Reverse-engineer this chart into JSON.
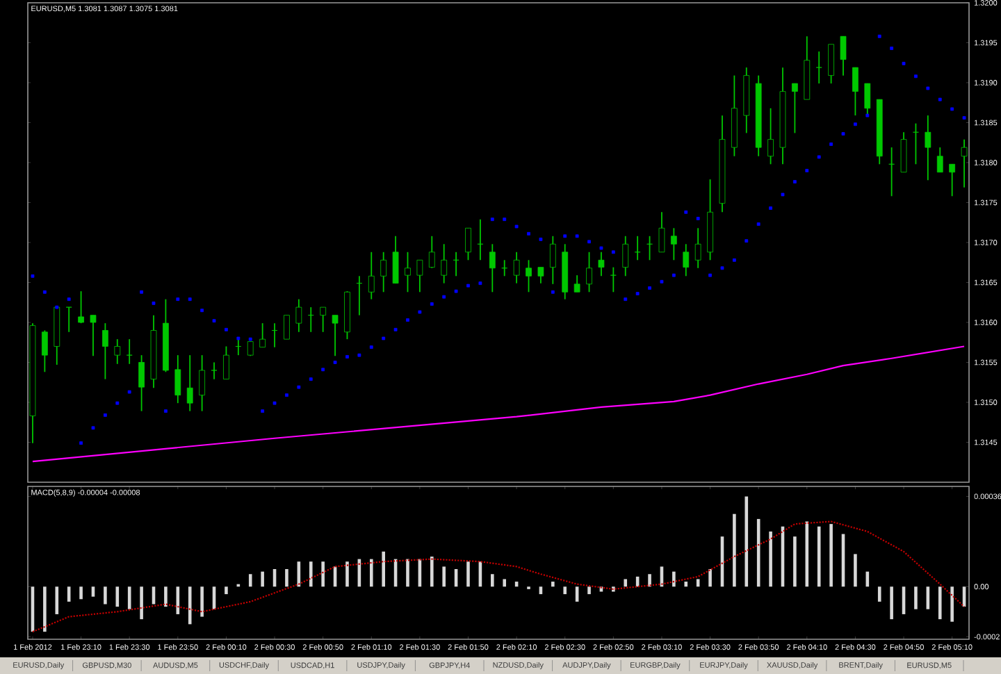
{
  "chart_data": [
    {
      "type": "candlestick",
      "title": "EURUSD,M5  1.3081 1.3087 1.3075 1.3081",
      "color": "#00c800",
      "x": [
        "2012-02-01T22:50",
        "2012-02-01T22:55",
        "2012-02-01T23:00",
        "2012-02-01T23:05",
        "2012-02-01T23:10",
        "2012-02-01T23:15",
        "2012-02-01T23:20",
        "2012-02-01T23:25",
        "2012-02-01T23:30",
        "2012-02-01T23:35",
        "2012-02-01T23:40",
        "2012-02-01T23:45",
        "2012-02-01T23:50",
        "2012-02-01T23:55",
        "2012-02-02T00:00",
        "2012-02-02T00:05",
        "2012-02-02T00:10",
        "2012-02-02T00:15",
        "2012-02-02T00:20",
        "2012-02-02T00:25",
        "2012-02-02T00:30",
        "2012-02-02T00:35",
        "2012-02-02T00:40",
        "2012-02-02T00:45",
        "2012-02-02T00:50",
        "2012-02-02T00:55",
        "2012-02-02T01:00",
        "2012-02-02T01:05",
        "2012-02-02T01:10",
        "2012-02-02T01:15",
        "2012-02-02T01:20",
        "2012-02-02T01:25",
        "2012-02-02T01:30",
        "2012-02-02T01:35",
        "2012-02-02T01:40",
        "2012-02-02T01:45",
        "2012-02-02T01:50",
        "2012-02-02T01:55",
        "2012-02-02T02:00",
        "2012-02-02T02:05",
        "2012-02-02T02:10",
        "2012-02-02T02:15",
        "2012-02-02T02:20",
        "2012-02-02T02:25",
        "2012-02-02T02:30",
        "2012-02-02T02:35",
        "2012-02-02T02:40",
        "2012-02-02T02:45",
        "2012-02-02T02:50",
        "2012-02-02T02:55",
        "2012-02-02T03:00",
        "2012-02-02T03:05",
        "2012-02-02T03:10",
        "2012-02-02T03:15",
        "2012-02-02T03:20",
        "2012-02-02T03:25",
        "2012-02-02T03:30",
        "2012-02-02T03:35",
        "2012-02-02T03:40",
        "2012-02-02T03:45",
        "2012-02-02T03:50",
        "2012-02-02T03:55",
        "2012-02-02T04:00",
        "2012-02-02T04:05",
        "2012-02-02T04:10",
        "2012-02-02T04:15",
        "2012-02-02T04:20",
        "2012-02-02T04:25",
        "2012-02-02T04:30",
        "2012-02-02T04:35",
        "2012-02-02T04:40",
        "2012-02-02T04:45",
        "2012-02-02T04:50",
        "2012-02-02T04:55",
        "2012-02-02T05:00",
        "2012-02-02T05:05",
        "2012-02-02T05:10",
        "2012-02-02T05:15"
      ],
      "ohlc": [
        [
          1.31483,
          1.31599,
          1.31449,
          1.31596
        ],
        [
          1.31588,
          1.3159,
          1.31538,
          1.31559
        ],
        [
          1.3157,
          1.31619,
          1.31547,
          1.31619
        ],
        [
          1.31619,
          1.31619,
          1.31588,
          1.31619
        ],
        [
          1.31607,
          1.31639,
          1.31599,
          1.316
        ],
        [
          1.31609,
          1.31609,
          1.31558,
          1.316
        ],
        [
          1.3159,
          1.31599,
          1.31529,
          1.3157
        ],
        [
          1.31559,
          1.31579,
          1.31548,
          1.3157
        ],
        [
          1.31559,
          1.31579,
          1.31548,
          1.31559
        ],
        [
          1.3155,
          1.31559,
          1.31489,
          1.31519
        ],
        [
          1.31529,
          1.31609,
          1.31518,
          1.3159
        ],
        [
          1.31599,
          1.31629,
          1.31538,
          1.3154
        ],
        [
          1.31541,
          1.31559,
          1.31499,
          1.31509
        ],
        [
          1.31518,
          1.31559,
          1.31489,
          1.31499
        ],
        [
          1.31509,
          1.31559,
          1.31489,
          1.3154
        ],
        [
          1.3154,
          1.3155,
          1.31529,
          1.3154
        ],
        [
          1.31529,
          1.3157,
          1.31529,
          1.31559
        ],
        [
          1.3157,
          1.31581,
          1.31559,
          1.3157
        ],
        [
          1.31559,
          1.31576,
          1.31558,
          1.31576
        ],
        [
          1.31569,
          1.31599,
          1.31569,
          1.31579
        ],
        [
          1.3159,
          1.31599,
          1.31569,
          1.3159
        ],
        [
          1.31579,
          1.31609,
          1.31579,
          1.31609
        ],
        [
          1.31599,
          1.31629,
          1.31588,
          1.31619
        ],
        [
          1.31609,
          1.31619,
          1.31588,
          1.31609
        ],
        [
          1.31609,
          1.31619,
          1.31588,
          1.31619
        ],
        [
          1.31609,
          1.31609,
          1.31558,
          1.31599
        ],
        [
          1.31588,
          1.31639,
          1.31579,
          1.31638
        ],
        [
          1.31649,
          1.31658,
          1.31609,
          1.31649
        ],
        [
          1.31638,
          1.31688,
          1.31629,
          1.31658
        ],
        [
          1.31658,
          1.31688,
          1.31638,
          1.31678
        ],
        [
          1.31688,
          1.31708,
          1.31649,
          1.31649
        ],
        [
          1.31659,
          1.31688,
          1.31638,
          1.31668
        ],
        [
          1.31659,
          1.31678,
          1.31638,
          1.31678
        ],
        [
          1.31669,
          1.31708,
          1.31668,
          1.31688
        ],
        [
          1.31659,
          1.31698,
          1.31649,
          1.31678
        ],
        [
          1.31678,
          1.31688,
          1.31658,
          1.31678
        ],
        [
          1.31688,
          1.31718,
          1.31678,
          1.31718
        ],
        [
          1.31698,
          1.31729,
          1.31678,
          1.31698
        ],
        [
          1.31688,
          1.31698,
          1.31638,
          1.31668
        ],
        [
          1.31668,
          1.31678,
          1.31658,
          1.31668
        ],
        [
          1.31659,
          1.31688,
          1.31649,
          1.31678
        ],
        [
          1.31668,
          1.31678,
          1.31638,
          1.31658
        ],
        [
          1.31669,
          1.31669,
          1.31649,
          1.31658
        ],
        [
          1.31669,
          1.31708,
          1.31648,
          1.31698
        ],
        [
          1.31688,
          1.31698,
          1.31629,
          1.31638
        ],
        [
          1.31648,
          1.31659,
          1.31638,
          1.31638
        ],
        [
          1.31648,
          1.31688,
          1.31638,
          1.31668
        ],
        [
          1.31678,
          1.31688,
          1.31658,
          1.31669
        ],
        [
          1.31659,
          1.31669,
          1.31638,
          1.31659
        ],
        [
          1.31669,
          1.31708,
          1.31658,
          1.31698
        ],
        [
          1.31688,
          1.31708,
          1.31678,
          1.31688
        ],
        [
          1.31698,
          1.31708,
          1.31678,
          1.31698
        ],
        [
          1.31688,
          1.31738,
          1.31688,
          1.31718
        ],
        [
          1.31708,
          1.31718,
          1.31678,
          1.31698
        ],
        [
          1.31688,
          1.31698,
          1.31658,
          1.31669
        ],
        [
          1.31678,
          1.31718,
          1.31668,
          1.31698
        ],
        [
          1.31688,
          1.31779,
          1.31678,
          1.31738
        ],
        [
          1.31749,
          1.31859,
          1.31738,
          1.31829
        ],
        [
          1.31819,
          1.31909,
          1.31808,
          1.31868
        ],
        [
          1.31859,
          1.31919,
          1.31837,
          1.31909
        ],
        [
          1.31899,
          1.31909,
          1.31808,
          1.31819
        ],
        [
          1.31808,
          1.31868,
          1.31798,
          1.31829
        ],
        [
          1.31819,
          1.31919,
          1.31798,
          1.31889
        ],
        [
          1.31899,
          1.31899,
          1.31837,
          1.31889
        ],
        [
          1.31879,
          1.31958,
          1.31879,
          1.31928
        ],
        [
          1.31919,
          1.31939,
          1.31899,
          1.31919
        ],
        [
          1.31909,
          1.31948,
          1.31899,
          1.31948
        ],
        [
          1.31958,
          1.31958,
          1.31909,
          1.31929
        ],
        [
          1.31919,
          1.31919,
          1.31859,
          1.31889
        ],
        [
          1.31899,
          1.31899,
          1.31859,
          1.31868
        ],
        [
          1.31879,
          1.31879,
          1.31798,
          1.31808
        ],
        [
          1.31798,
          1.31819,
          1.31758,
          1.31798
        ],
        [
          1.31788,
          1.31838,
          1.31788,
          1.31829
        ],
        [
          1.31838,
          1.31849,
          1.31798,
          1.31838
        ],
        [
          1.31838,
          1.31859,
          1.31778,
          1.31819
        ],
        [
          1.31808,
          1.31819,
          1.31788,
          1.31788
        ],
        [
          1.31798,
          1.31798,
          1.31758,
          1.31788
        ],
        [
          1.31808,
          1.31829,
          1.31769,
          1.31819
        ]
      ],
      "series": [
        {
          "type": "scatter",
          "color": "#0000ff",
          "marker": "square",
          "values": [
            1.31658,
            1.31638,
            1.31619,
            1.31629,
            1.31449,
            1.31468,
            1.31484,
            1.31499,
            1.31513,
            1.31638,
            1.31624,
            1.31489,
            1.31629,
            1.31629,
            1.31615,
            1.31602,
            1.31591,
            1.3158,
            1.31579,
            1.31489,
            1.31499,
            1.31509,
            1.31519,
            1.31529,
            1.31541,
            1.3155,
            1.31557,
            1.31559,
            1.31569,
            1.3158,
            1.31591,
            1.31603,
            1.31613,
            1.31623,
            1.31632,
            1.31639,
            1.31646,
            1.31649,
            1.31729,
            1.31729,
            1.3172,
            1.31711,
            1.31704,
            1.31638,
            1.31708,
            1.31708,
            1.31701,
            1.31693,
            1.31688,
            1.31629,
            1.31636,
            1.31643,
            1.31651,
            1.31659,
            1.31738,
            1.3173,
            1.31659,
            1.31668,
            1.31678,
            1.31702,
            1.31723,
            1.31743,
            1.3176,
            1.31776,
            1.3179,
            1.31807,
            1.31823,
            1.31836,
            1.31848,
            1.31859,
            1.31958,
            1.31943,
            1.31924,
            1.31908,
            1.31893,
            1.31879,
            1.31867,
            1.31856
          ]
        },
        {
          "type": "line",
          "color": "#ff00ff",
          "x": [
            "2012-02-01T22:50",
            "2012-02-02T00:30",
            "2012-02-02T02:10",
            "2012-02-02T02:45",
            "2012-02-02T03:15",
            "2012-02-02T03:30",
            "2012-02-02T03:50",
            "2012-02-02T04:10",
            "2012-02-02T04:25",
            "2012-02-02T04:45",
            "2012-02-02T05:15"
          ],
          "values": [
            1.31426,
            1.31455,
            1.31482,
            1.31494,
            1.31501,
            1.31509,
            1.31523,
            1.31535,
            1.31546,
            1.31555,
            1.3157
          ]
        }
      ],
      "xlim": [
        "2012-02-01T22:48",
        "2012-02-02T05:17"
      ],
      "ylim": [
        1.314,
        1.32
      ],
      "yticks": [
        1.3145,
        {
          "value": 1.315,
          "label": "1.3150"
        },
        1.3155,
        {
          "value": 1.316,
          "label": "1.3160"
        },
        1.3165,
        {
          "value": 1.317,
          "label": "1.3170"
        },
        1.3175,
        {
          "value": 1.318,
          "label": "1.3180"
        },
        1.3185,
        {
          "value": 1.319,
          "label": "1.3190"
        },
        1.3195,
        {
          "value": 1.32,
          "label": "1.3200"
        }
      ],
      "tick_labels": "y"
    },
    {
      "type": "bar",
      "title": "MACD(5,8,9) -0.00004 -0.00008",
      "x": [
        "2012-02-01T22:50",
        "2012-02-01T22:55",
        "2012-02-01T23:00",
        "2012-02-01T23:05",
        "2012-02-01T23:10",
        "2012-02-01T23:15",
        "2012-02-01T23:20",
        "2012-02-01T23:25",
        "2012-02-01T23:30",
        "2012-02-01T23:35",
        "2012-02-01T23:40",
        "2012-02-01T23:45",
        "2012-02-01T23:50",
        "2012-02-01T23:55",
        "2012-02-02T00:00",
        "2012-02-02T00:05",
        "2012-02-02T00:10",
        "2012-02-02T00:15",
        "2012-02-02T00:20",
        "2012-02-02T00:25",
        "2012-02-02T00:30",
        "2012-02-02T00:35",
        "2012-02-02T00:40",
        "2012-02-02T00:45",
        "2012-02-02T00:50",
        "2012-02-02T00:55",
        "2012-02-02T01:00",
        "2012-02-02T01:05",
        "2012-02-02T01:10",
        "2012-02-02T01:15",
        "2012-02-02T01:20",
        "2012-02-02T01:25",
        "2012-02-02T01:30",
        "2012-02-02T01:35",
        "2012-02-02T01:40",
        "2012-02-02T01:45",
        "2012-02-02T01:50",
        "2012-02-02T01:55",
        "2012-02-02T02:00",
        "2012-02-02T02:05",
        "2012-02-02T02:10",
        "2012-02-02T02:15",
        "2012-02-02T02:20",
        "2012-02-02T02:25",
        "2012-02-02T02:30",
        "2012-02-02T02:35",
        "2012-02-02T02:40",
        "2012-02-02T02:45",
        "2012-02-02T02:50",
        "2012-02-02T02:55",
        "2012-02-02T03:00",
        "2012-02-02T03:05",
        "2012-02-02T03:10",
        "2012-02-02T03:15",
        "2012-02-02T03:20",
        "2012-02-02T03:25",
        "2012-02-02T03:30",
        "2012-02-02T03:35",
        "2012-02-02T03:40",
        "2012-02-02T03:45",
        "2012-02-02T03:50",
        "2012-02-02T03:55",
        "2012-02-02T04:00",
        "2012-02-02T04:05",
        "2012-02-02T04:10",
        "2012-02-02T04:15",
        "2012-02-02T04:20",
        "2012-02-02T04:25",
        "2012-02-02T04:30",
        "2012-02-02T04:35",
        "2012-02-02T04:40",
        "2012-02-02T04:45",
        "2012-02-02T04:50",
        "2012-02-02T04:55",
        "2012-02-02T05:00",
        "2012-02-02T05:05",
        "2012-02-02T05:10",
        "2012-02-02T05:15"
      ],
      "series": [
        {
          "type": "bar",
          "color": "#d8d8d8",
          "values": [
            -0.00018,
            -0.00018,
            -0.00011,
            -6e-05,
            -5e-05,
            -4e-05,
            -7e-05,
            -8e-05,
            -9e-05,
            -0.00013,
            -7e-05,
            -8e-05,
            -0.00011,
            -0.00015,
            -0.00012,
            -9e-05,
            -3e-05,
            1e-05,
            5e-05,
            6e-05,
            7e-05,
            7e-05,
            0.0001,
            0.0001,
            0.0001,
            8e-05,
            0.0001,
            0.00011,
            0.00011,
            0.00014,
            0.00011,
            0.00011,
            0.00011,
            0.00012,
            8e-05,
            7e-05,
            0.0001,
            0.0001,
            5e-05,
            3e-05,
            2e-05,
            -1e-05,
            -3e-05,
            2e-05,
            -3e-05,
            -6e-05,
            -3e-05,
            -2e-05,
            -2e-05,
            3e-05,
            4e-05,
            5e-05,
            8e-05,
            6e-05,
            2e-05,
            3e-05,
            7e-05,
            0.0002,
            0.00029,
            0.00036,
            0.00027,
            0.00022,
            0.00024,
            0.0002,
            0.00026,
            0.00024,
            0.00025,
            0.00021,
            0.00013,
            6e-05,
            -6e-05,
            -0.00013,
            -0.00011,
            -9e-05,
            -9e-05,
            -0.00013,
            -0.00014,
            -8e-05
          ]
        },
        {
          "type": "line",
          "color": "#c00000",
          "line_style": "dotted",
          "x": [
            "2012-02-01T22:50",
            "2012-02-01T23:05",
            "2012-02-01T23:25",
            "2012-02-01T23:45",
            "2012-02-02T00:00",
            "2012-02-02T00:20",
            "2012-02-02T00:40",
            "2012-02-02T00:55",
            "2012-02-02T01:15",
            "2012-02-02T01:35",
            "2012-02-02T01:55",
            "2012-02-02T02:10",
            "2012-02-02T02:20",
            "2012-02-02T02:35",
            "2012-02-02T02:50",
            "2012-02-02T03:10",
            "2012-02-02T03:25",
            "2012-02-02T03:40",
            "2012-02-02T03:55",
            "2012-02-02T04:05",
            "2012-02-02T04:20",
            "2012-02-02T04:35",
            "2012-02-02T04:50",
            "2012-02-02T05:05",
            "2012-02-02T05:15"
          ],
          "values": [
            -0.00018,
            -0.00012,
            -0.0001,
            -7e-05,
            -0.0001,
            -6e-05,
            1e-05,
            8e-05,
            0.0001,
            0.00011,
            0.0001,
            8e-05,
            5e-05,
            1e-05,
            -1e-05,
            1e-05,
            4e-05,
            0.00012,
            0.00019,
            0.00025,
            0.00026,
            0.00022,
            0.00014,
            1e-05,
            -8e-05
          ]
        }
      ],
      "xlim": [
        "2012-02-01T22:48",
        "2012-02-02T05:17"
      ],
      "ylim": [
        -0.00021,
        0.0004
      ],
      "xticks": [
        {
          "value": "2012-02-01T22:50",
          "label": "1 Feb 2012"
        },
        {
          "value": "2012-02-01T23:10",
          "label": "1 Feb 23:10"
        },
        {
          "value": "2012-02-01T23:30",
          "label": "1 Feb 23:30"
        },
        {
          "value": "2012-02-01T23:50",
          "label": "1 Feb 23:50"
        },
        {
          "value": "2012-02-02T00:10",
          "label": "2 Feb 00:10"
        },
        {
          "value": "2012-02-02T00:30",
          "label": "2 Feb 00:30"
        },
        {
          "value": "2012-02-02T00:50",
          "label": "2 Feb 00:50"
        },
        {
          "value": "2012-02-02T01:10",
          "label": "2 Feb 01:10"
        },
        {
          "value": "2012-02-02T01:30",
          "label": "2 Feb 01:30"
        },
        {
          "value": "2012-02-02T01:50",
          "label": "2 Feb 01:50"
        },
        {
          "value": "2012-02-02T02:10",
          "label": "2 Feb 02:10"
        },
        {
          "value": "2012-02-02T02:30",
          "label": "2 Feb 02:30"
        },
        {
          "value": "2012-02-02T02:50",
          "label": "2 Feb 02:50"
        },
        {
          "value": "2012-02-02T03:10",
          "label": "2 Feb 03:10"
        },
        {
          "value": "2012-02-02T03:30",
          "label": "2 Feb 03:30"
        },
        {
          "value": "2012-02-02T03:50",
          "label": "2 Feb 03:50"
        },
        {
          "value": "2012-02-02T04:10",
          "label": "2 Feb 04:10"
        },
        {
          "value": "2012-02-02T04:30",
          "label": "2 Feb 04:30"
        },
        {
          "value": "2012-02-02T04:50",
          "label": "2 Feb 04:50"
        },
        {
          "value": "2012-02-02T05:10",
          "label": "2 Feb 05:10"
        }
      ],
      "yticks": [
        0.00036,
        {
          "value": 0,
          "label": "0.00"
        },
        -0.0002
      ],
      "annotations": [
        "EURUSD,Daily",
        "GBPUSD,M30",
        "AUDUSD,M5",
        "USDCHF,Daily",
        "USDCAD,H1",
        "USDJPY,Daily",
        "GBPJPY,H4",
        "NZDUSD,Daily",
        "AUDJPY,Daily",
        "EURGBP,Daily",
        "EURJPY,Daily",
        "XAUUSD,Daily",
        "BRENT,Daily",
        "EURUSD,M5"
      ]
    }
  ]
}
